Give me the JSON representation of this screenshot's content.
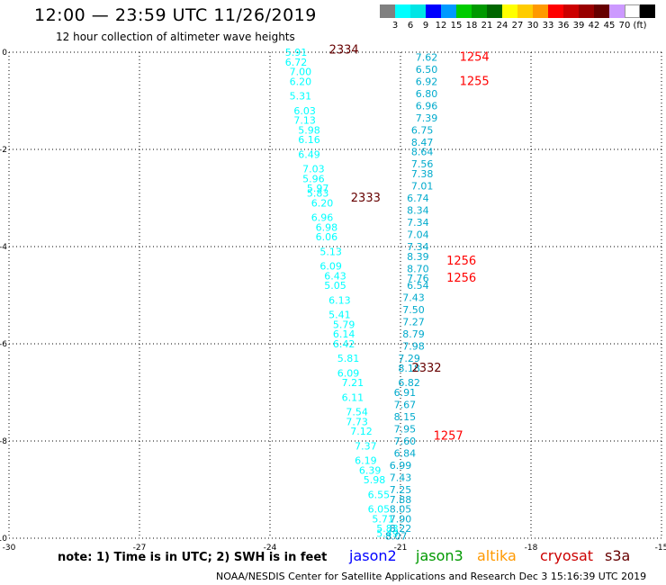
{
  "header": {
    "title": "12:00 — 23:59 UTC 11/26/2019",
    "subtitle": "12 hour collection of altimeter wave heights"
  },
  "colorbar": {
    "colors": [
      "#808080",
      "#00ffff",
      "#00e5e5",
      "#0000ff",
      "#0099ff",
      "#00cc00",
      "#009900",
      "#006600",
      "#ffff00",
      "#ffcc00",
      "#ff9900",
      "#ff0000",
      "#cc0000",
      "#990000",
      "#660000",
      "#cc99ff",
      "#ffffff",
      "#000000"
    ],
    "labels": [
      "3",
      "6",
      "9",
      "12",
      "15",
      "18",
      "21",
      "24",
      "27",
      "30",
      "33",
      "36",
      "39",
      "42",
      "45",
      "70",
      "(ft)"
    ]
  },
  "note": "note:  1) Time is in UTC;  2) SWH is in feet",
  "satellites": [
    {
      "name": "jason2",
      "color": "#0000ff"
    },
    {
      "name": "jason3",
      "color": "#009900"
    },
    {
      "name": "altika",
      "color": "#ff9900"
    },
    {
      "name": "cryosat",
      "color": "#cc0000"
    },
    {
      "name": "s3a",
      "color": "#660000"
    }
  ],
  "footer": "NOAA/NESDIS Center for Satellite Applications and Research    Dec  3 15:16:39 UTC 2019",
  "chart_data": {
    "type": "scatter",
    "xlim": [
      -30,
      -15
    ],
    "ylim": [
      -10,
      0
    ],
    "x_ticks": [
      "-30",
      "-27",
      "-24",
      "-21",
      "-18",
      "-15"
    ],
    "y_ticks": [
      "0",
      "-2",
      "-4",
      "-6",
      "-8",
      "-10"
    ],
    "grid": true,
    "series": [
      {
        "color": "#00ffff",
        "points": [
          {
            "x": -23.4,
            "y": 0.0,
            "v": "5.91"
          },
          {
            "x": -23.4,
            "y": -0.2,
            "v": "6.72"
          },
          {
            "x": -23.3,
            "y": -0.4,
            "v": "7.00"
          },
          {
            "x": -23.3,
            "y": -0.6,
            "v": "6.20"
          },
          {
            "x": -23.3,
            "y": -0.9,
            "v": "5.31"
          },
          {
            "x": -23.2,
            "y": -1.2,
            "v": "6.03"
          },
          {
            "x": -23.2,
            "y": -1.4,
            "v": "7.13"
          },
          {
            "x": -23.1,
            "y": -1.6,
            "v": "5.98"
          },
          {
            "x": -23.1,
            "y": -1.8,
            "v": "6.16"
          },
          {
            "x": -23.1,
            "y": -2.1,
            "v": "6.49"
          },
          {
            "x": -23.0,
            "y": -2.4,
            "v": "7.03"
          },
          {
            "x": -23.0,
            "y": -2.6,
            "v": "5.96"
          },
          {
            "x": -22.9,
            "y": -2.8,
            "v": "5.97"
          },
          {
            "x": -22.9,
            "y": -2.9,
            "v": "5.83"
          },
          {
            "x": -22.8,
            "y": -3.1,
            "v": "6.20"
          },
          {
            "x": -22.8,
            "y": -3.4,
            "v": "6.96"
          },
          {
            "x": -22.7,
            "y": -3.6,
            "v": "6.98"
          },
          {
            "x": -22.7,
            "y": -3.8,
            "v": "6.06"
          },
          {
            "x": -22.6,
            "y": -4.1,
            "v": "5.13"
          },
          {
            "x": -22.6,
            "y": -4.4,
            "v": "6.09"
          },
          {
            "x": -22.5,
            "y": -4.6,
            "v": "6.43"
          },
          {
            "x": -22.5,
            "y": -4.8,
            "v": "5.05"
          },
          {
            "x": -22.4,
            "y": -5.1,
            "v": "6.13"
          },
          {
            "x": -22.4,
            "y": -5.4,
            "v": "5.41"
          },
          {
            "x": -22.3,
            "y": -5.6,
            "v": "5.79"
          },
          {
            "x": -22.3,
            "y": -5.8,
            "v": "6.14"
          },
          {
            "x": -22.3,
            "y": -6.0,
            "v": "6.42"
          },
          {
            "x": -22.2,
            "y": -6.3,
            "v": "5.81"
          },
          {
            "x": -22.2,
            "y": -6.6,
            "v": "6.09"
          },
          {
            "x": -22.1,
            "y": -6.8,
            "v": "7.21"
          },
          {
            "x": -22.1,
            "y": -7.1,
            "v": "6.11"
          },
          {
            "x": -22.0,
            "y": -7.4,
            "v": "7.54"
          },
          {
            "x": -22.0,
            "y": -7.6,
            "v": "7.73"
          },
          {
            "x": -21.9,
            "y": -7.8,
            "v": "7.12"
          },
          {
            "x": -21.8,
            "y": -8.1,
            "v": "7.37"
          },
          {
            "x": -21.8,
            "y": -8.4,
            "v": "6.19"
          },
          {
            "x": -21.7,
            "y": -8.6,
            "v": "6.39"
          },
          {
            "x": -21.6,
            "y": -8.8,
            "v": "5.98"
          },
          {
            "x": -21.5,
            "y": -9.1,
            "v": "6.55"
          },
          {
            "x": -21.5,
            "y": -9.4,
            "v": "6.05"
          },
          {
            "x": -21.4,
            "y": -9.6,
            "v": "5.71"
          },
          {
            "x": -21.3,
            "y": -9.8,
            "v": "5.83"
          },
          {
            "x": -21.3,
            "y": -9.9,
            "v": "5.49"
          }
        ]
      },
      {
        "color": "#00aacc",
        "points": [
          {
            "x": -20.4,
            "y": -0.1,
            "v": "7.62"
          },
          {
            "x": -20.4,
            "y": -0.35,
            "v": "6.50"
          },
          {
            "x": -20.4,
            "y": -0.6,
            "v": "6.92"
          },
          {
            "x": -20.4,
            "y": -0.85,
            "v": "6.80"
          },
          {
            "x": -20.4,
            "y": -1.1,
            "v": "6.96"
          },
          {
            "x": -20.4,
            "y": -1.35,
            "v": "7.39"
          },
          {
            "x": -20.5,
            "y": -1.6,
            "v": "6.75"
          },
          {
            "x": -20.5,
            "y": -1.85,
            "v": "8.47"
          },
          {
            "x": -20.5,
            "y": -2.05,
            "v": "8.64"
          },
          {
            "x": -20.5,
            "y": -2.3,
            "v": "7.56"
          },
          {
            "x": -20.5,
            "y": -2.5,
            "v": "7.38"
          },
          {
            "x": -20.5,
            "y": -2.75,
            "v": "7.01"
          },
          {
            "x": -20.6,
            "y": -3.0,
            "v": "6.74"
          },
          {
            "x": -20.6,
            "y": -3.25,
            "v": "8.34"
          },
          {
            "x": -20.6,
            "y": -3.5,
            "v": "7.34"
          },
          {
            "x": -20.6,
            "y": -3.75,
            "v": "7.04"
          },
          {
            "x": -20.6,
            "y": -4.0,
            "v": "7.34"
          },
          {
            "x": -20.6,
            "y": -4.2,
            "v": "8.39"
          },
          {
            "x": -20.6,
            "y": -4.45,
            "v": "8.70"
          },
          {
            "x": -20.6,
            "y": -4.65,
            "v": "7.76"
          },
          {
            "x": -20.6,
            "y": -4.8,
            "v": "6.54"
          },
          {
            "x": -20.7,
            "y": -5.05,
            "v": "7.43"
          },
          {
            "x": -20.7,
            "y": -5.3,
            "v": "7.50"
          },
          {
            "x": -20.7,
            "y": -5.55,
            "v": "7.27"
          },
          {
            "x": -20.7,
            "y": -5.8,
            "v": "8.79"
          },
          {
            "x": -20.7,
            "y": -6.05,
            "v": "7.98"
          },
          {
            "x": -20.8,
            "y": -6.3,
            "v": "7.29"
          },
          {
            "x": -20.8,
            "y": -6.5,
            "v": "8.18"
          },
          {
            "x": -20.8,
            "y": -6.8,
            "v": "6.82"
          },
          {
            "x": -20.9,
            "y": -7.0,
            "v": "6.91"
          },
          {
            "x": -20.9,
            "y": -7.25,
            "v": "7.67"
          },
          {
            "x": -20.9,
            "y": -7.5,
            "v": "8.15"
          },
          {
            "x": -20.9,
            "y": -7.75,
            "v": "7.95"
          },
          {
            "x": -20.9,
            "y": -8.0,
            "v": "7.60"
          },
          {
            "x": -20.9,
            "y": -8.25,
            "v": "6.84"
          },
          {
            "x": -21.0,
            "y": -8.5,
            "v": "6.99"
          },
          {
            "x": -21.0,
            "y": -8.75,
            "v": "7.43"
          },
          {
            "x": -21.0,
            "y": -9.0,
            "v": "7.25"
          },
          {
            "x": -21.0,
            "y": -9.2,
            "v": "7.88"
          },
          {
            "x": -21.0,
            "y": -9.4,
            "v": "8.05"
          },
          {
            "x": -21.0,
            "y": -9.6,
            "v": "7.90"
          },
          {
            "x": -21.0,
            "y": -9.8,
            "v": "8.22"
          },
          {
            "x": -21.1,
            "y": -9.95,
            "v": "8.07"
          }
        ]
      }
    ],
    "time_labels": [
      {
        "x": -22.3,
        "y": 0.05,
        "t": "2334",
        "color": "#660000"
      },
      {
        "x": -21.8,
        "y": -3.0,
        "t": "2333",
        "color": "#660000"
      },
      {
        "x": -20.4,
        "y": -6.5,
        "t": "2332",
        "color": "#660000"
      },
      {
        "x": -19.3,
        "y": -0.1,
        "t": "1254",
        "color": "#ff0000"
      },
      {
        "x": -19.3,
        "y": -0.6,
        "t": "1255",
        "color": "#ff0000"
      },
      {
        "x": -19.6,
        "y": -4.3,
        "t": "1256",
        "color": "#ff0000"
      },
      {
        "x": -19.6,
        "y": -4.65,
        "t": "1256",
        "color": "#ff0000"
      },
      {
        "x": -19.9,
        "y": -7.9,
        "t": "1257",
        "color": "#ff0000"
      }
    ]
  }
}
